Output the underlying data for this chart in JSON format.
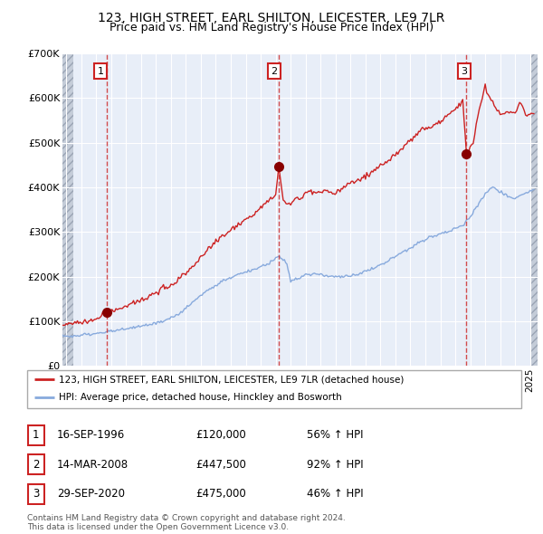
{
  "title1": "123, HIGH STREET, EARL SHILTON, LEICESTER, LE9 7LR",
  "title2": "Price paid vs. HM Land Registry's House Price Index (HPI)",
  "sale_prices": [
    120000,
    447500,
    475000
  ],
  "sale_labels": [
    "1",
    "2",
    "3"
  ],
  "legend_property": "123, HIGH STREET, EARL SHILTON, LEICESTER, LE9 7LR (detached house)",
  "legend_hpi": "HPI: Average price, detached house, Hinckley and Bosworth",
  "table_rows": [
    [
      "1",
      "16-SEP-1996",
      "£120,000",
      "56% ↑ HPI"
    ],
    [
      "2",
      "14-MAR-2008",
      "£447,500",
      "92% ↑ HPI"
    ],
    [
      "3",
      "29-SEP-2020",
      "£475,000",
      "46% ↑ HPI"
    ]
  ],
  "footer": "Contains HM Land Registry data © Crown copyright and database right 2024.\nThis data is licensed under the Open Government Licence v3.0.",
  "property_line_color": "#cc2222",
  "hpi_line_color": "#88aadd",
  "sale_dot_color": "#880000",
  "vline_color": "#cc2222",
  "plot_bg_color": "#e8eef8",
  "grid_color": "#ffffff",
  "ylim": [
    0,
    700000
  ],
  "yticks": [
    0,
    100000,
    200000,
    300000,
    400000,
    500000,
    600000,
    700000
  ],
  "ytick_labels": [
    "£0",
    "£100K",
    "£200K",
    "£300K",
    "£400K",
    "£500K",
    "£600K",
    "£700K"
  ],
  "xlim_start": 1993.75,
  "xlim_end": 2025.5,
  "sale_years": [
    1996.71,
    2008.21,
    2020.75
  ]
}
